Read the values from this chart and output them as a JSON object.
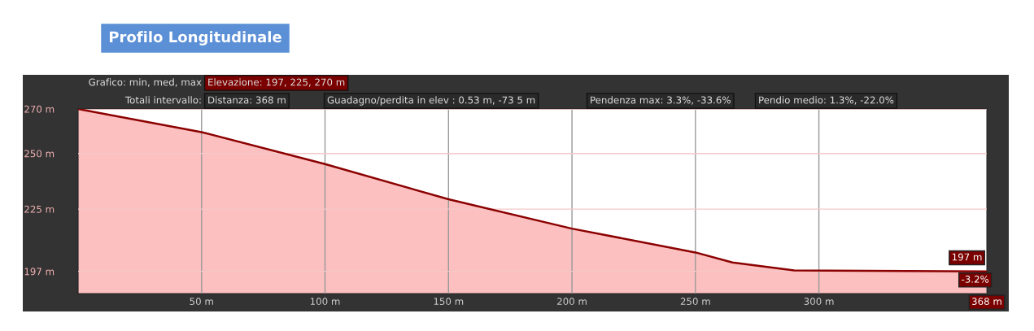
{
  "chart_data": {
    "type": "area",
    "title": "Profilo Longitudinale",
    "x": [
      0,
      50,
      100,
      150,
      200,
      250,
      265,
      290,
      368
    ],
    "series": [
      {
        "color": "#8b0000",
        "values": [
          270,
          259.6,
          245.2,
          229.4,
          216.2,
          205.5,
          201,
          197.4,
          197
        ]
      }
    ],
    "xlim": [
      0,
      368
    ],
    "ylim": [
      187,
      270
    ],
    "xticks": [
      {
        "value": 50,
        "label": "50 m"
      },
      {
        "value": 100,
        "label": "100 m"
      },
      {
        "value": 150,
        "label": "150 m"
      },
      {
        "value": 200,
        "label": "200 m"
      },
      {
        "value": 250,
        "label": "250 m"
      },
      {
        "value": 300,
        "label": "300 m"
      },
      {
        "value": 368,
        "label": "368 m"
      }
    ],
    "yticks": [
      {
        "value": 197,
        "label": "197 m"
      },
      {
        "value": 225,
        "label": "225 m"
      },
      {
        "value": 250,
        "label": "250 m"
      },
      {
        "value": 270,
        "label": "270 m"
      }
    ],
    "grid": true,
    "annotations": [
      "Grafico: min, med, max",
      "Elevazione: 197, 225, 270 m",
      "Totali intervallo:",
      "Distanza: 368 m",
      "Guadagno/perdita in elev : 0.53 m, -73 5 m",
      "Pendenza max: 3.3%, -33.6%",
      "Pendio medio: 1.3%, -22.0%",
      {
        "text": "197 m",
        "x": 368,
        "y": 197
      },
      "-3.2%"
    ]
  }
}
